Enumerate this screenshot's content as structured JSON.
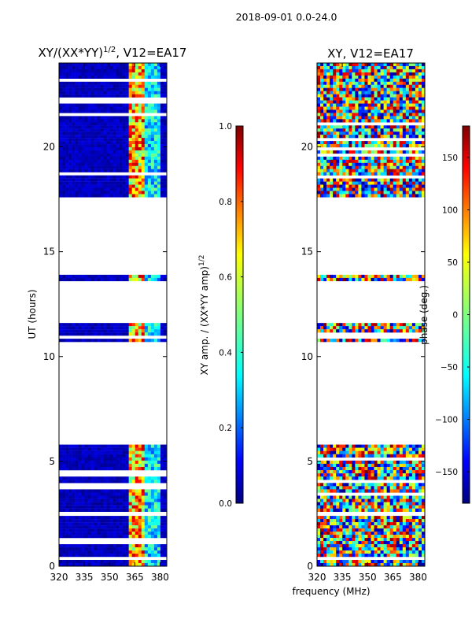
{
  "figure_title": "2018-09-01 0.0-24.0",
  "shared_xlabel": "frequency (MHz)",
  "colors": {
    "low_value": "#00007f",
    "jet": [
      "#00007f",
      "#0000ff",
      "#007fff",
      "#00ffff",
      "#7fff7f",
      "#ffff00",
      "#ff7f00",
      "#ff0000",
      "#7f0000"
    ]
  },
  "chart_data": [
    {
      "type": "heatmap",
      "title": "XY/(XX*YY)^{1/2}, V12=EA17",
      "title_main": "XY/(XX*YY)",
      "title_exp": "1/2",
      "title_tail": ", V12=EA17",
      "xlabel": "frequency (MHz)",
      "ylabel": "UT (hours)",
      "xlim": [
        320,
        384
      ],
      "ylim": [
        0,
        24
      ],
      "xticks": [
        320,
        335,
        350,
        365,
        380
      ],
      "xtick_labels": [
        "320",
        "335",
        "350",
        "365",
        "380"
      ],
      "yticks": [
        0,
        5,
        10,
        15,
        20
      ],
      "ytick_labels": [
        "0",
        "5",
        "10",
        "15",
        "20"
      ],
      "data_time_ranges_hours": [
        [
          0.0,
          2.4
        ],
        [
          2.6,
          5.8
        ],
        [
          10.7,
          11.6
        ],
        [
          13.6,
          13.9
        ],
        [
          17.6,
          24.0
        ]
      ],
      "colorbar": {
        "label": "XY amp. / (XX*YY amp)^{1/2}",
        "label_main": "XY amp. / (XX*YY amp)",
        "label_exp": "1/2",
        "range": [
          0.0,
          1.0
        ],
        "ticks": [
          0.0,
          0.2,
          0.4,
          0.6,
          0.8,
          1.0
        ],
        "tick_labels": [
          "0.0",
          "0.2",
          "0.4",
          "0.6",
          "0.8",
          "1.0"
        ],
        "colormap": "jet"
      }
    },
    {
      "type": "heatmap",
      "title": "XY, V12=EA17",
      "xlabel": "frequency (MHz)",
      "ylabel": "",
      "xlim": [
        320,
        384
      ],
      "ylim": [
        0,
        24
      ],
      "xticks": [
        320,
        335,
        350,
        365,
        380
      ],
      "xtick_labels": [
        "320",
        "335",
        "350",
        "365",
        "380"
      ],
      "yticks": [
        0,
        5,
        10,
        15,
        20
      ],
      "ytick_labels": [
        "0",
        "5",
        "10",
        "15",
        "20"
      ],
      "data_time_ranges_hours": [
        [
          0.0,
          2.4
        ],
        [
          2.6,
          5.8
        ],
        [
          10.7,
          11.6
        ],
        [
          13.6,
          13.9
        ],
        [
          17.6,
          24.0
        ]
      ],
      "colorbar": {
        "label": "phase (deg.)",
        "range": [
          -180,
          180
        ],
        "ticks": [
          -150,
          -100,
          -50,
          0,
          50,
          100,
          150
        ],
        "tick_labels": [
          "−150",
          "−100",
          "−50",
          "0",
          "50",
          "100",
          "150"
        ],
        "colormap": "jet"
      }
    }
  ]
}
